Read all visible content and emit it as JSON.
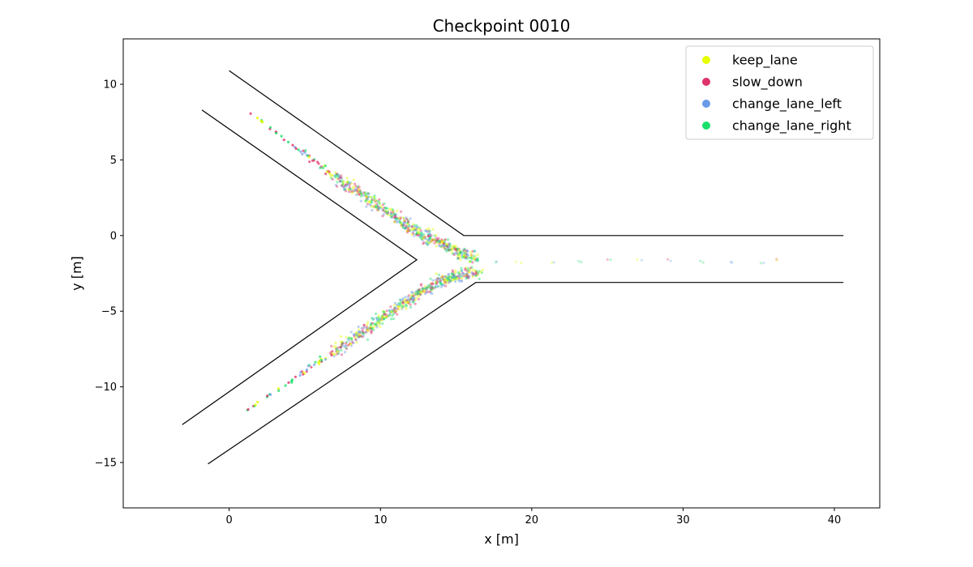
{
  "chart_data": {
    "type": "scatter",
    "title": "Checkpoint 0010",
    "xlabel": "x [m]",
    "ylabel": "y [m]",
    "xlim": [
      -7,
      43
    ],
    "ylim": [
      -18,
      13
    ],
    "xticks": [
      0,
      10,
      20,
      30,
      40
    ],
    "yticks": [
      10,
      5,
      0,
      -5,
      -10,
      -15
    ],
    "grid": false,
    "legend_position": "top-right",
    "road_boundaries": [
      {
        "points": [
          [
            0.0,
            10.9
          ],
          [
            15.5,
            0.0
          ],
          [
            40.6,
            0.0
          ]
        ]
      },
      {
        "points": [
          [
            -1.8,
            8.3
          ],
          [
            12.4,
            -1.6
          ],
          [
            -3.1,
            -12.5
          ]
        ]
      },
      {
        "points": [
          [
            -1.4,
            -15.1
          ],
          [
            16.3,
            -3.1
          ],
          [
            40.6,
            -3.1
          ]
        ]
      }
    ],
    "series": [
      {
        "name": "keep_lane",
        "color": "#e6ff00"
      },
      {
        "name": "slow_down",
        "color": "#e0336b"
      },
      {
        "name": "change_lane_left",
        "color": "#6a9be8"
      },
      {
        "name": "change_lane_right",
        "color": "#1ae06a"
      }
    ],
    "trajectories": [
      {
        "x": [
          1.3,
          2.5,
          3.6,
          4.7,
          5.8,
          6.9,
          8.0,
          9.1,
          10.1,
          11.1,
          12.0,
          12.9,
          13.8,
          14.6,
          15.4,
          16.3,
          17.5,
          19.0,
          21.0,
          23.0,
          25.0,
          27.0,
          29.0,
          31.0,
          33.0,
          35.0,
          36.2
        ],
        "y": [
          8.1,
          7.3,
          6.4,
          5.6,
          4.8,
          4.0,
          3.2,
          2.5,
          1.8,
          1.1,
          0.5,
          0.0,
          -0.4,
          -0.8,
          -1.2,
          -1.5,
          -1.7,
          -1.8,
          -1.8,
          -1.7,
          -1.6,
          -1.6,
          -1.6,
          -1.7,
          -1.8,
          -1.8,
          -1.7
        ]
      },
      {
        "x": [
          1.1,
          2.3,
          3.5,
          4.7,
          5.8,
          6.9,
          8.0,
          9.1,
          10.1,
          11.1,
          12.0,
          12.9,
          13.8,
          14.6,
          15.5
        ],
        "y": [
          -11.6,
          -10.8,
          -10.0,
          -9.2,
          -8.4,
          -7.7,
          -7.0,
          -6.2,
          -5.5,
          -4.8,
          -4.2,
          -3.6,
          -3.1,
          -2.8,
          -2.5
        ]
      }
    ]
  }
}
